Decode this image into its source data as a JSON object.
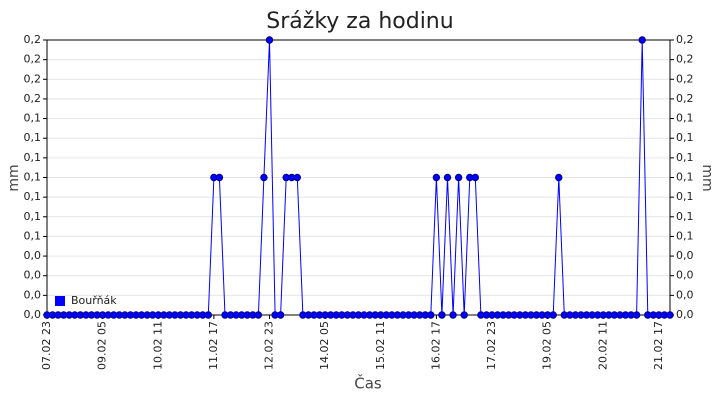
{
  "chart_data": {
    "type": "line",
    "title": "Srážky za hodinu",
    "x_label": "Čas",
    "y_label": "mm",
    "x": [
      "07.02 23",
      null,
      null,
      null,
      null,
      null,
      null,
      null,
      null,
      null,
      "09.02 05",
      null,
      null,
      null,
      null,
      null,
      null,
      null,
      null,
      null,
      "10.02 11",
      null,
      null,
      null,
      null,
      null,
      null,
      null,
      null,
      null,
      "11.02 17",
      null,
      null,
      null,
      null,
      null,
      null,
      null,
      null,
      null,
      "12.02 23",
      null,
      null,
      null,
      null,
      null,
      null,
      null,
      null,
      null,
      "14.02 05",
      null,
      null,
      null,
      null,
      null,
      null,
      null,
      null,
      null,
      "15.02 11",
      null,
      null,
      null,
      null,
      null,
      null,
      null,
      null,
      null,
      "16.02 17",
      null,
      null,
      null,
      null,
      null,
      null,
      null,
      null,
      null,
      "17.02 23",
      null,
      null,
      null,
      null,
      null,
      null,
      null,
      null,
      null,
      "19.02 05",
      null,
      null,
      null,
      null,
      null,
      null,
      null,
      null,
      null,
      "20.02 11",
      null,
      null,
      null,
      null,
      null,
      null,
      null,
      null,
      null,
      "21.02 17",
      null,
      null
    ],
    "series": [
      {
        "name": "Bouřňák",
        "color": "#0000ff",
        "values": [
          0,
          0,
          0,
          0,
          0,
          0,
          0,
          0,
          0,
          0,
          0,
          0,
          0,
          0,
          0,
          0,
          0,
          0,
          0,
          0,
          0,
          0,
          0,
          0,
          0,
          0,
          0,
          0,
          0,
          0,
          0.1,
          0.1,
          0,
          0,
          0,
          0,
          0,
          0,
          0,
          0.1,
          0.2,
          0,
          0,
          0.1,
          0.1,
          0.1,
          0,
          0,
          0,
          0,
          0,
          0,
          0,
          0,
          0,
          0,
          0,
          0,
          0,
          0,
          0,
          0,
          0,
          0,
          0,
          0,
          0,
          0,
          0,
          0,
          0.1,
          0,
          0.1,
          0,
          0.1,
          0,
          0.1,
          0.1,
          0,
          0,
          0,
          0,
          0,
          0,
          0,
          0,
          0,
          0,
          0,
          0,
          0,
          0,
          0.1,
          0,
          0,
          0,
          0,
          0,
          0,
          0,
          0,
          0,
          0,
          0,
          0,
          0,
          0,
          0.2,
          0,
          0,
          0,
          0,
          0
        ]
      }
    ],
    "ylim": [
      0,
      0.2
    ],
    "yticks": [
      {
        "value": 0,
        "label": "0,0"
      },
      {
        "value": 0.0142857,
        "label": "0,0"
      },
      {
        "value": 0.0285714,
        "label": "0,0"
      },
      {
        "value": 0.0428571,
        "label": "0,0"
      },
      {
        "value": 0.0571429,
        "label": "0,1"
      },
      {
        "value": 0.0714286,
        "label": "0,1"
      },
      {
        "value": 0.0857143,
        "label": "0,1"
      },
      {
        "value": 0.1,
        "label": "0,1"
      },
      {
        "value": 0.1142857,
        "label": "0,1"
      },
      {
        "value": 0.1285714,
        "label": "0,1"
      },
      {
        "value": 0.1428571,
        "label": "0,1"
      },
      {
        "value": 0.1571429,
        "label": "0,2"
      },
      {
        "value": 0.1714286,
        "label": "0,2"
      },
      {
        "value": 0.1857143,
        "label": "0,2"
      },
      {
        "value": 0.2,
        "label": "0,2"
      }
    ],
    "grid": true,
    "legend": "lower left"
  }
}
